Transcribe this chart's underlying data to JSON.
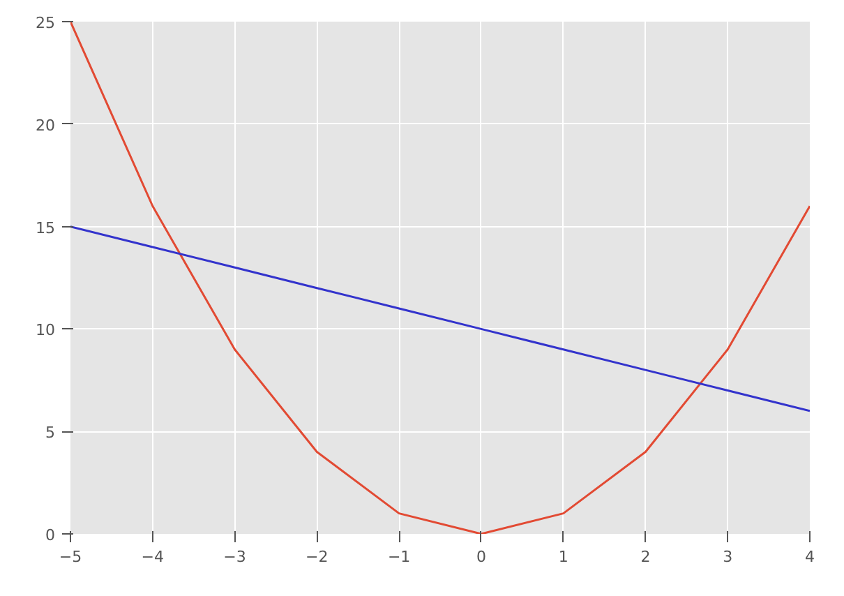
{
  "chart_data": {
    "type": "line",
    "x": [
      -5,
      -4,
      -3,
      -2,
      -1,
      0,
      1,
      2,
      3,
      4
    ],
    "series": [
      {
        "color": "#e24a33",
        "values": [
          25,
          16,
          9,
          4,
          1,
          0,
          1,
          4,
          9,
          16
        ]
      },
      {
        "color": "#3333cc",
        "values": [
          15,
          14,
          13,
          12,
          11,
          10,
          9,
          8,
          7,
          6
        ]
      }
    ],
    "xlim": [
      -5,
      4
    ],
    "ylim": [
      0,
      25
    ],
    "xticks": [
      -5,
      -4,
      -3,
      -2,
      -1,
      0,
      1,
      2,
      3,
      4
    ],
    "yticks": [
      0,
      5,
      10,
      15,
      20,
      25
    ],
    "grid": true
  }
}
